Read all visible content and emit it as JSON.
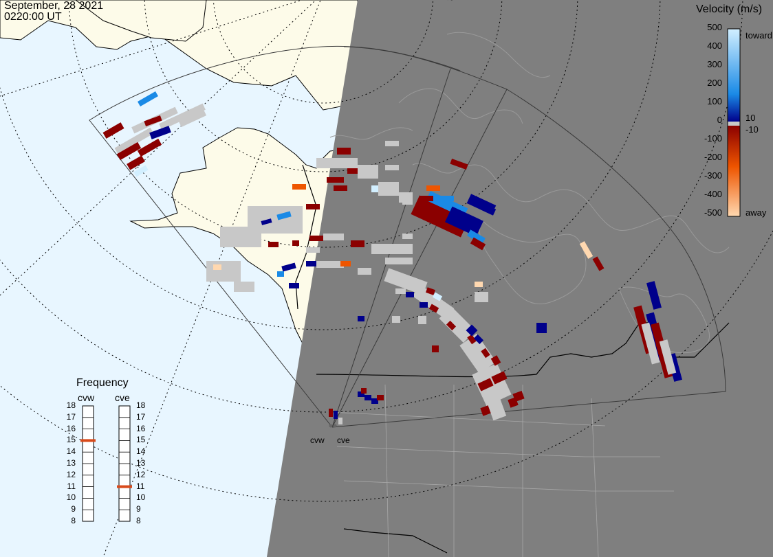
{
  "header": {
    "date": "September, 28 2021",
    "time": "0220:00 UT"
  },
  "velocity_scale": {
    "title": "Velocity (m/s)",
    "ticks": [
      "500",
      "400",
      "300",
      "200",
      "100",
      "0",
      "-100",
      "-200",
      "-300",
      "-400",
      "-500"
    ],
    "positive_threshold": "10",
    "negative_threshold": "-10",
    "toward_label": "toward",
    "away_label": "away",
    "colors": {
      "toward_high": "#d2efff",
      "toward_mid": "#1a8ae6",
      "toward_low": "#00008b",
      "ground_scatter": "#c8c8c8",
      "away_low": "#8b0000",
      "away_mid": "#ee5500",
      "away_high": "#ffd8b0"
    }
  },
  "frequency": {
    "title": "Frequency",
    "radars": [
      {
        "name": "cvw",
        "value_mhz": 15
      },
      {
        "name": "cve",
        "value_mhz": 11
      }
    ],
    "scale_min": 8,
    "scale_max": 18,
    "marker_color": "#d84a1b"
  },
  "sites": [
    "cvw",
    "cve"
  ],
  "colors": {
    "ocean": "#e8f6ff",
    "land": "#fdfbe9",
    "night": "#7f7f7f",
    "coast_day": "#000000",
    "coast_night": "#9a9a9a"
  }
}
